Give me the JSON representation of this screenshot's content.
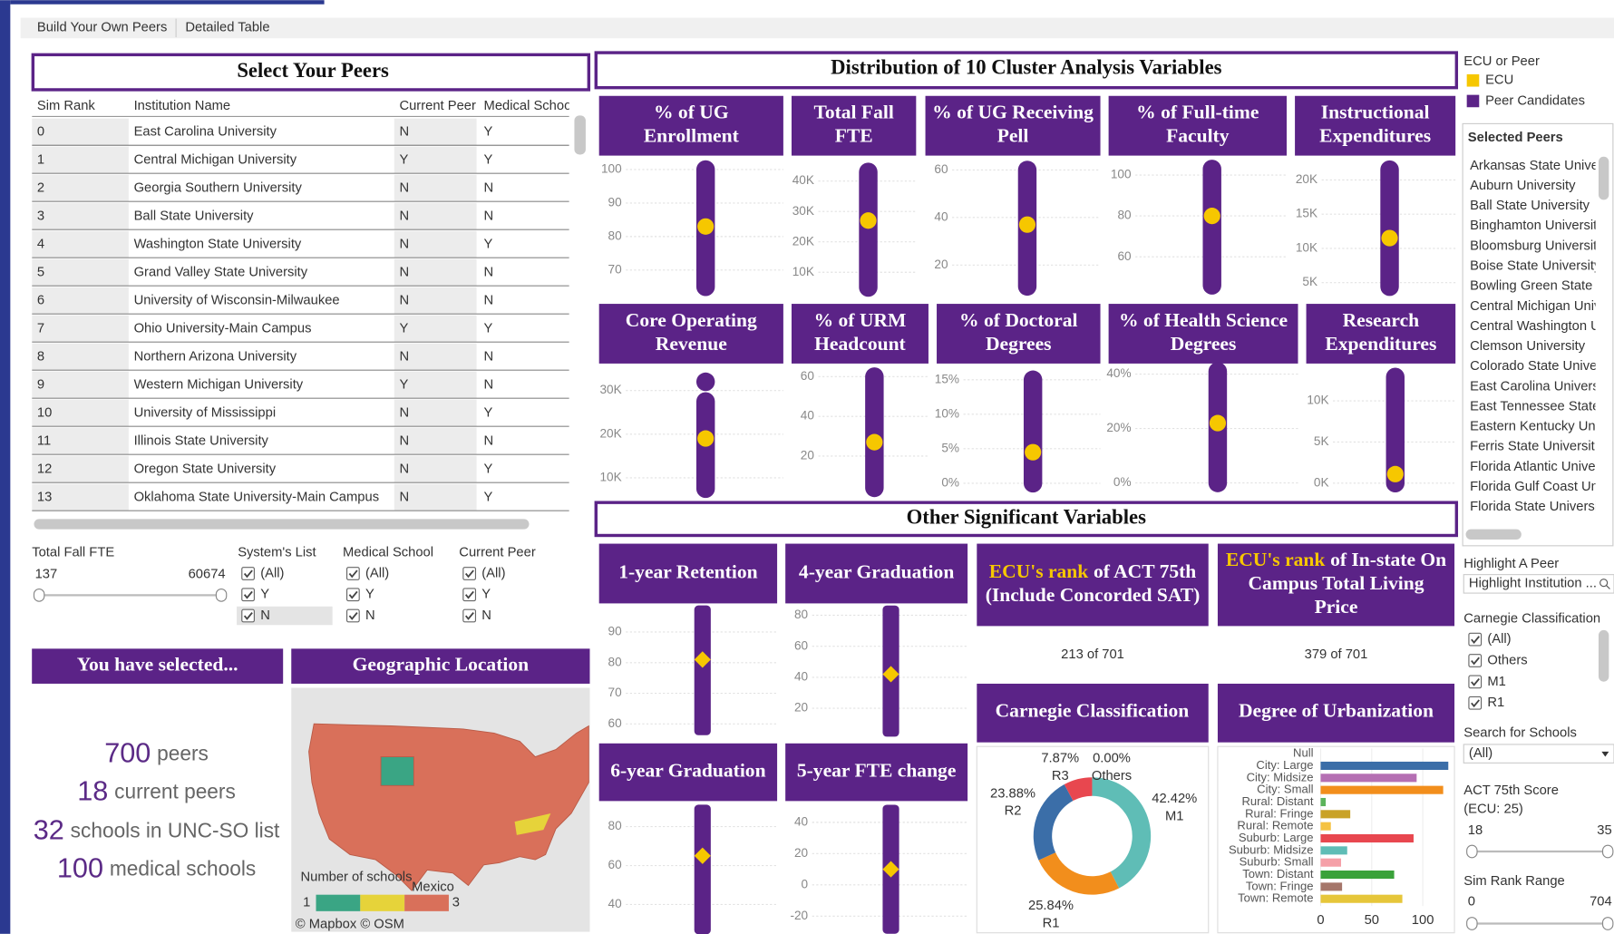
{
  "tabs": [
    "Build Your Own Peers",
    "Detailed Table"
  ],
  "peers_table": {
    "title": "Select Your Peers",
    "columns": [
      "Sim Rank",
      "Institution Name",
      "Current Peer",
      "Medical Schoo"
    ],
    "rows": [
      [
        0,
        "East Carolina University",
        "N",
        "Y"
      ],
      [
        1,
        "Central Michigan University",
        "Y",
        "Y"
      ],
      [
        2,
        "Georgia Southern University",
        "N",
        "N"
      ],
      [
        3,
        "Ball State University",
        "N",
        "N"
      ],
      [
        4,
        "Washington State University",
        "N",
        "Y"
      ],
      [
        5,
        "Grand Valley State University",
        "N",
        "N"
      ],
      [
        6,
        "University of Wisconsin-Milwaukee",
        "N",
        "N"
      ],
      [
        7,
        "Ohio University-Main Campus",
        "Y",
        "Y"
      ],
      [
        8,
        "Northern Arizona University",
        "N",
        "N"
      ],
      [
        9,
        "Western Michigan University",
        "Y",
        "N"
      ],
      [
        10,
        "University of Mississippi",
        "N",
        "Y"
      ],
      [
        11,
        "Illinois State University",
        "N",
        "N"
      ],
      [
        12,
        "Oregon State University",
        "N",
        "Y"
      ],
      [
        13,
        "Oklahoma State University-Main Campus",
        "N",
        "Y"
      ]
    ]
  },
  "filters": {
    "fte": {
      "label": "Total Fall FTE",
      "min": 137,
      "max": 60674
    },
    "checklists": [
      {
        "label": "System's List",
        "options": [
          "(All)",
          "Y",
          "N"
        ]
      },
      {
        "label": "Medical School",
        "options": [
          "(All)",
          "Y",
          "N"
        ]
      },
      {
        "label": "Current Peer",
        "options": [
          "(All)",
          "Y",
          "N"
        ]
      }
    ]
  },
  "summary": {
    "title": "You have selected...",
    "lines": [
      {
        "count": 700,
        "text": "peers"
      },
      {
        "count": 18,
        "text": "current peers"
      },
      {
        "count": 32,
        "text": "schools in UNC-SO list"
      },
      {
        "count": 100,
        "text": "medical schools"
      }
    ]
  },
  "geo": {
    "title": "Geographic Location",
    "legend_title": "Number of schools",
    "legend_min": 1,
    "legend_max": 3,
    "place": "Mexico",
    "credits": "© Mapbox  © OSM"
  },
  "distribution": {
    "title": "Distribution of 10 Cluster Analysis Variables",
    "panels": [
      {
        "title": [
          "% of UG",
          "Enrollment"
        ],
        "ylim": [
          63,
          102
        ],
        "yticks": [
          70,
          80,
          90,
          100
        ],
        "min": 65,
        "max": 100,
        "ecu": 83
      },
      {
        "title": [
          "Total Fall",
          "FTE"
        ],
        "ylim": [
          3000,
          46000
        ],
        "yticks": [
          {
            "value": 10000,
            "label": "10K"
          },
          {
            "value": 20000,
            "label": "20K"
          },
          {
            "value": 30000,
            "label": "30K"
          },
          {
            "value": 40000,
            "label": "40K"
          }
        ],
        "min": 5000,
        "max": 43000,
        "ecu": 27000
      },
      {
        "title": [
          "% of UG Receiving",
          "Pell"
        ],
        "ylim": [
          8,
          63
        ],
        "yticks": [
          20,
          40,
          60
        ],
        "min": 11,
        "max": 60,
        "ecu": 37
      },
      {
        "title": [
          "% of Full-time",
          "Faculty"
        ],
        "ylim": [
          42,
          106
        ],
        "yticks": [
          60,
          80,
          100
        ],
        "min": 46,
        "max": 103,
        "ecu": 80
      },
      {
        "title": [
          "Instructional",
          "Expenditures"
        ],
        "ylim": [
          3400,
          22500
        ],
        "yticks": [
          {
            "value": 5000,
            "label": "5K"
          },
          {
            "value": 10000,
            "label": "10K"
          },
          {
            "value": 15000,
            "label": "15K"
          },
          {
            "value": 20000,
            "label": "20K"
          }
        ],
        "min": 4400,
        "max": 21500,
        "ecu": 11500
      },
      {
        "title": [
          "Core Operating",
          "Revenue"
        ],
        "ylim": [
          6700,
          35000
        ],
        "yticks": [
          {
            "value": 10000,
            "label": "10K"
          },
          {
            "value": 20000,
            "label": "20K"
          },
          {
            "value": 30000,
            "label": "30K"
          }
        ],
        "min": 7500,
        "max": 27500,
        "outliers": [
          32000
        ],
        "ecu": 19000
      },
      {
        "title": [
          "% of URM",
          "Headcount"
        ],
        "ylim": [
          1.8,
          64
        ],
        "yticks": [
          20,
          40,
          60
        ],
        "min": 4,
        "max": 60,
        "ecu": 27
      },
      {
        "title": [
          "% of Doctoral",
          "Degrees"
        ],
        "ylim": [
          -1.3,
          16.6
        ],
        "yticks": [
          {
            "value": 0,
            "label": "0%"
          },
          {
            "value": 5,
            "label": "5%"
          },
          {
            "value": 10,
            "label": "10%"
          },
          {
            "value": 15,
            "label": "15%"
          }
        ],
        "min": 0,
        "max": 15,
        "ecu": 4.5
      },
      {
        "title": [
          "% of Health Science",
          "Degrees"
        ],
        "ylim": [
          -3.4,
          42
        ],
        "yticks": [
          {
            "value": 0,
            "label": "0%"
          },
          {
            "value": 20,
            "label": "20%"
          },
          {
            "value": 40,
            "label": "40%"
          }
        ],
        "min": 0,
        "max": 41,
        "ecu": 22
      },
      {
        "title": [
          "Research",
          "Expenditures"
        ],
        "ylim": [
          -1100,
          13900
        ],
        "yticks": [
          {
            "value": 0,
            "label": "0K"
          },
          {
            "value": 5000,
            "label": "5K"
          },
          {
            "value": 10000,
            "label": "10K"
          }
        ],
        "min": 0,
        "max": 12900,
        "ecu": 1100
      }
    ]
  },
  "other": {
    "title": "Other Significant Variables",
    "panels": [
      {
        "title": [
          "1-year Retention"
        ],
        "ylim": [
          57,
          98
        ],
        "yticks": [
          60,
          70,
          80,
          90
        ],
        "min": 59,
        "max": 96,
        "ecu": 81
      },
      {
        "title": [
          "4-year Graduation"
        ],
        "ylim": [
          4,
          85
        ],
        "yticks": [
          20,
          40,
          60,
          80
        ],
        "min": 7,
        "max": 81,
        "ecu": 42
      },
      {
        "title": [
          "6-year Graduation"
        ],
        "ylim": [
          26,
          91
        ],
        "yticks": [
          40,
          60,
          80
        ],
        "min": 29,
        "max": 87,
        "ecu": 65
      },
      {
        "title": [
          "5-year FTE change"
        ],
        "ylim": [
          -30,
          51
        ],
        "yticks": [
          -20,
          0,
          20,
          40
        ],
        "min": -26,
        "max": 46,
        "ecu": 10
      }
    ]
  },
  "rank_cards": [
    {
      "highlight": "ECU's rank",
      "title": [
        "of ACT 75th",
        "(Include Concorded SAT)"
      ],
      "value": "213 of 701"
    },
    {
      "highlight": "ECU's rank",
      "title": [
        "of In-state On",
        "Campus Total Living",
        "Price"
      ],
      "value": "379 of 701"
    }
  ],
  "carnegie_chart": {
    "type": "pie",
    "title": "Carnegie Classification",
    "categories": [
      "M1",
      "R1",
      "R2",
      "R3",
      "Others"
    ],
    "values": [
      42.42,
      25.84,
      23.88,
      7.87,
      0
    ],
    "value_labels": [
      "42.42%",
      "25.84%",
      "23.88%",
      "7.87%",
      "0.00%"
    ],
    "colors": [
      "#5fbdb6",
      "#f28e1c",
      "#3b6ea8",
      "#e8474f",
      "#b56fb3"
    ]
  },
  "urbanization_chart": {
    "type": "bar",
    "title": "Degree of Urbanization",
    "categories": [
      "Null",
      "City: Large",
      "City: Midsize",
      "City: Small",
      "Rural: Distant",
      "Rural: Fringe",
      "Rural: Remote",
      "Suburb: Large",
      "Suburb: Midsize",
      "Suburb: Small",
      "Town: Distant",
      "Town: Fringe",
      "Town: Remote"
    ],
    "values": [
      0,
      125,
      94,
      120,
      5,
      29,
      10,
      91,
      26,
      20,
      72,
      21,
      80
    ],
    "colors": [
      "#999999",
      "#3b6ea8",
      "#b56fb3",
      "#f28e1c",
      "#5bb35b",
      "#c9a227",
      "#f5c242",
      "#e8474f",
      "#5fbdb6",
      "#f5a0a8",
      "#3aa23a",
      "#a5766a",
      "#e6c63a"
    ],
    "xlim": [
      0,
      128
    ],
    "xticks": [
      0,
      50,
      100
    ]
  },
  "sidebar": {
    "legend_title": "ECU or Peer",
    "legend": [
      {
        "name": "ECU",
        "color": "#f6c700"
      },
      {
        "name": "Peer Candidates",
        "color": "#5b2387"
      }
    ],
    "selected_peers": {
      "title": "Selected Peers",
      "items": [
        "Arkansas State Univer",
        "Auburn University",
        "Ball State University",
        "Binghamton Universit",
        "Bloomsburg Universit",
        "Boise State University",
        "Bowling Green State U",
        "Central Michigan Univ",
        "Central Washington U",
        "Clemson University",
        "Colorado State Univer",
        "East Carolina Univers",
        "East Tennessee State",
        "Eastern Kentucky Univ",
        "Ferris State Universit",
        "Florida Atlantic Unive",
        "Florida Gulf Coast Uni",
        "Florida State Universi"
      ]
    },
    "highlight": {
      "label": "Highlight A Peer",
      "placeholder": "Highlight Institution ..."
    },
    "carnegie_filter": {
      "label": "Carnegie Classification",
      "options": [
        "(All)",
        "Others",
        "M1",
        "R1"
      ]
    },
    "search": {
      "label": "Search for Schools",
      "value": "(All)"
    },
    "act": {
      "label": [
        "ACT 75th Score",
        "(ECU: 25)"
      ],
      "min": 18,
      "max": 35
    },
    "sim_rank": {
      "label": "Sim Rank Range",
      "min": 0,
      "max": 704
    }
  }
}
